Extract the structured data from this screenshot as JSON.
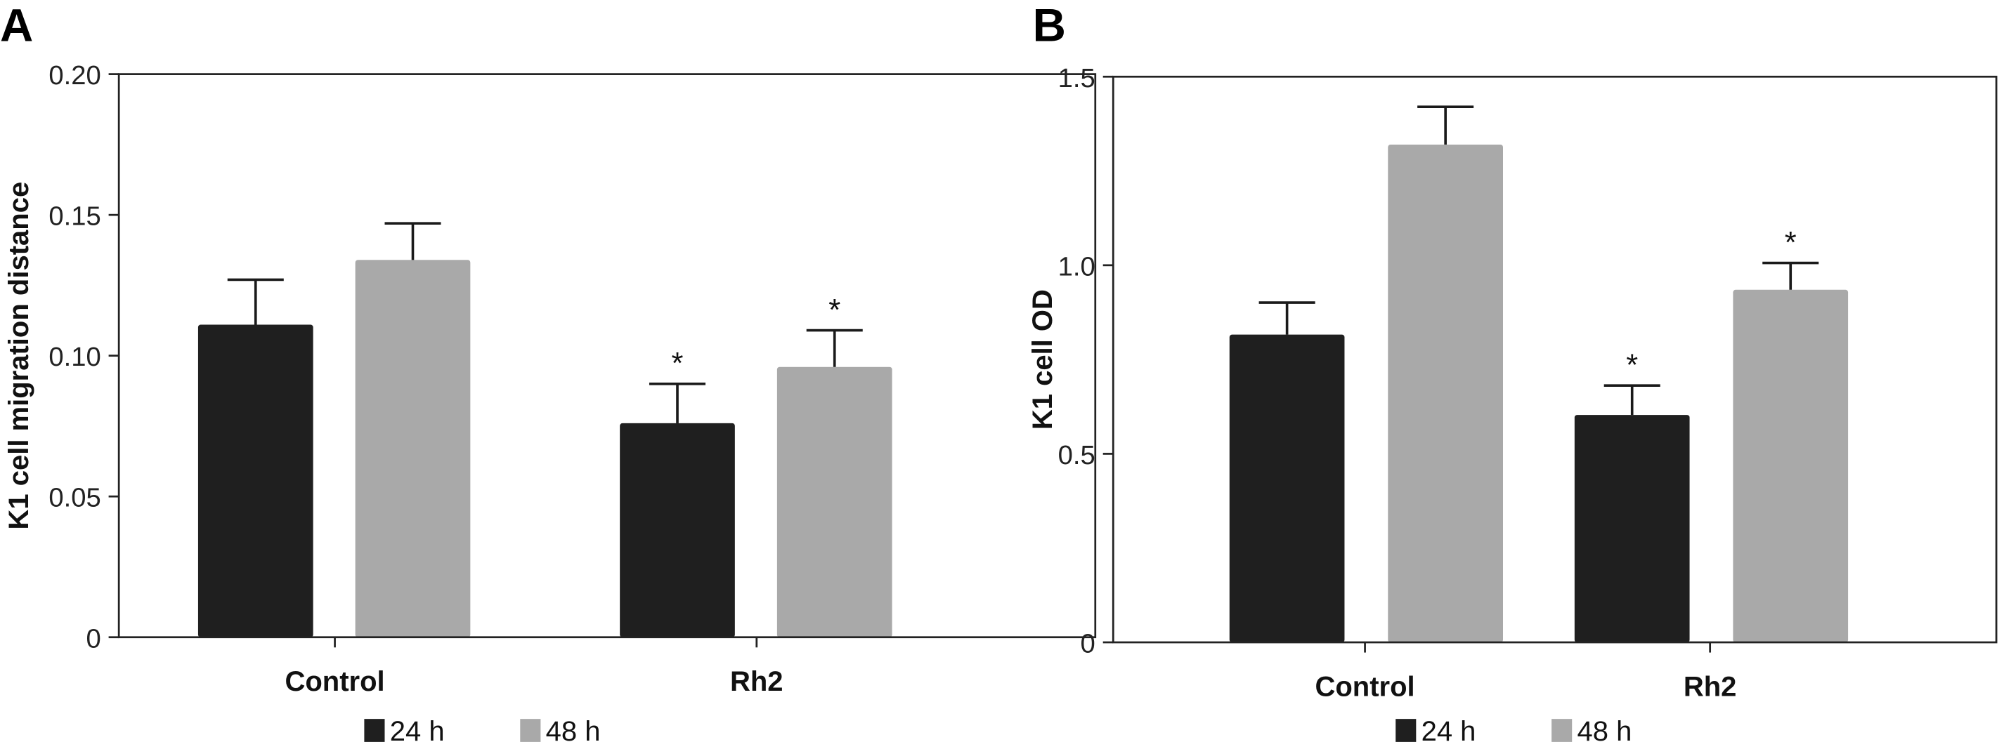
{
  "colors": {
    "24 h": "#1f1f1f",
    "48 h": "#a9a9a9"
  },
  "chart_data": [
    {
      "type": "bar",
      "panel_label": "A",
      "categories": [
        "Control",
        "Rh2"
      ],
      "ylabel": "K1 cell migration distance",
      "ylim": [
        0,
        0.2
      ],
      "yticks": [
        "0",
        "0.05",
        "0.10",
        "0.15",
        "0.20"
      ],
      "ytick_values": [
        0,
        0.05,
        0.1,
        0.15,
        0.2
      ],
      "legend": {
        "placement": "bottom",
        "entries": [
          "24 h",
          "48 h"
        ]
      },
      "grid": false,
      "series": [
        {
          "name": "24 h",
          "values": [
            0.111,
            0.076
          ],
          "error": [
            0.016,
            0.014
          ],
          "annotations": [
            "",
            "*"
          ]
        },
        {
          "name": "48 h",
          "values": [
            0.134,
            0.096
          ],
          "error": [
            0.013,
            0.013
          ],
          "annotations": [
            "",
            "*"
          ]
        }
      ]
    },
    {
      "type": "bar",
      "panel_label": "B",
      "categories": [
        "Control",
        "Rh2"
      ],
      "ylabel": "K1 cell OD",
      "ylim": [
        0,
        1.5
      ],
      "yticks": [
        "0",
        "0.5",
        "1.0",
        "1.5"
      ],
      "ytick_values": [
        0,
        0.5,
        1.0,
        1.5
      ],
      "legend": {
        "placement": "bottom",
        "entries": [
          "24 h",
          "48 h"
        ]
      },
      "grid": false,
      "series": [
        {
          "name": "24 h",
          "values": [
            0.816,
            0.603
          ],
          "error": [
            0.085,
            0.078
          ],
          "annotations": [
            "",
            "*"
          ]
        },
        {
          "name": "48 h",
          "values": [
            1.32,
            0.935
          ],
          "error": [
            0.1,
            0.071
          ],
          "annotations": [
            "",
            "*"
          ]
        }
      ]
    }
  ]
}
